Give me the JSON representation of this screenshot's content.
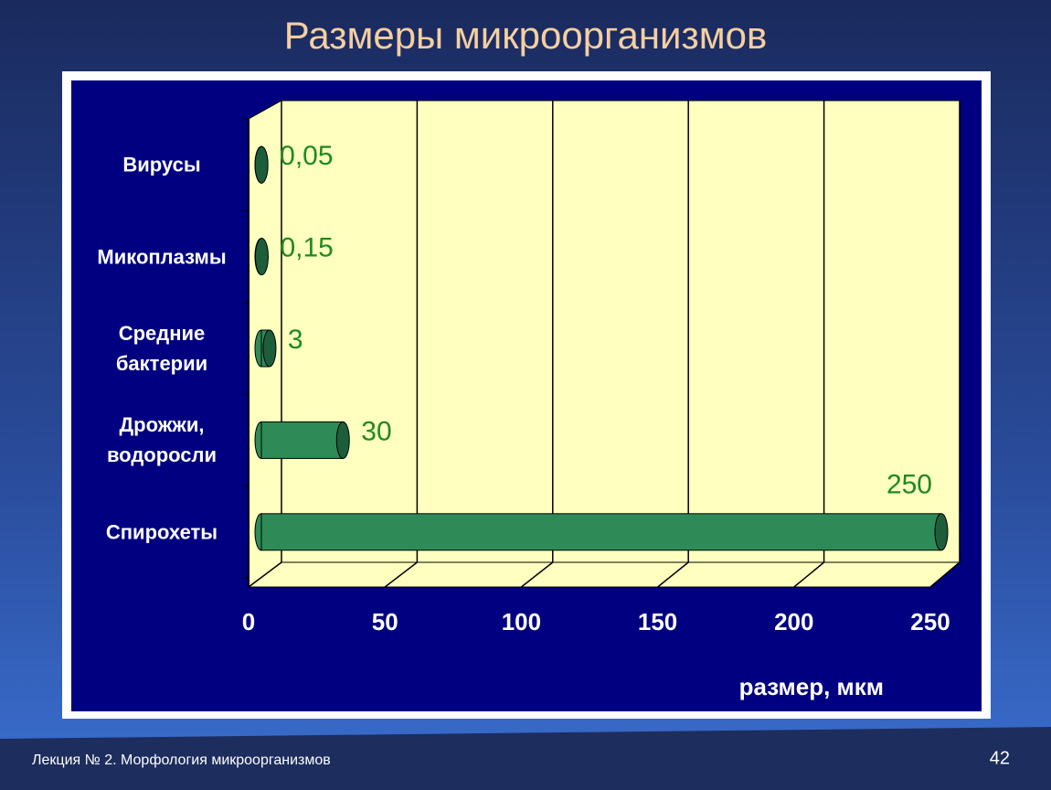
{
  "slide": {
    "title": "Размеры микроорганизмов",
    "footer": "Лекция № 2. Морфология микроорганизмов",
    "page_number": "42"
  },
  "chart_data": {
    "type": "bar",
    "orientation": "horizontal",
    "categories": [
      "Вирусы",
      "Микоплазмы",
      "Средние бактерии",
      "Дрожжи, водоросли",
      "Спирохеты"
    ],
    "values": [
      0.05,
      0.15,
      3,
      30,
      250
    ],
    "value_labels": [
      "0,05",
      "0,15",
      "3",
      "30",
      "250"
    ],
    "color": "#2e8b57",
    "label_color": "#1f8a1f",
    "x_label": "размер, мкм",
    "xlim": [
      0,
      250
    ],
    "xticks": [
      0,
      50,
      100,
      150,
      200,
      250
    ],
    "grid": true
  }
}
